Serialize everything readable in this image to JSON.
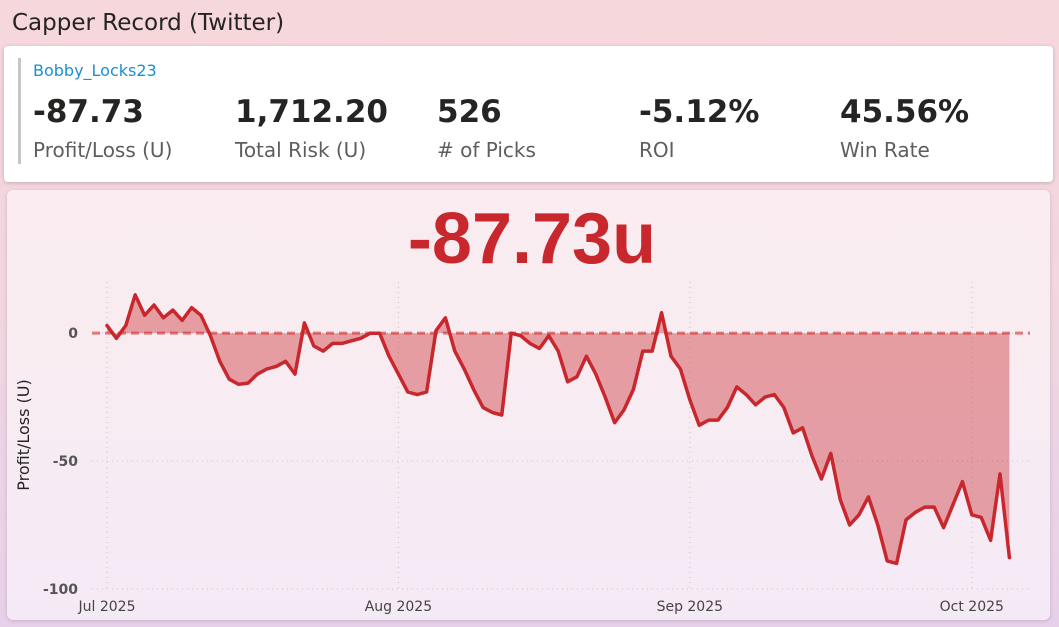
{
  "header": {
    "title": "Capper Record (Twitter)"
  },
  "card": {
    "name": "Bobby_Locks23",
    "kpis": [
      {
        "value": "-87.73",
        "label": "Profit/Loss (U)"
      },
      {
        "value": "1,712.20",
        "label": "Total Risk (U)"
      },
      {
        "value": "526",
        "label": "# of Picks"
      },
      {
        "value": "-5.12%",
        "label": "ROI"
      },
      {
        "value": "45.56%",
        "label": "Win Rate"
      }
    ]
  },
  "chart_data": {
    "type": "line",
    "annotation": "-87.73u",
    "y_label": "Profit/Loss (U)",
    "categories": [
      "Jul 2025",
      null,
      null,
      null,
      null,
      null,
      null,
      null,
      null,
      null,
      null,
      null,
      null,
      null,
      null,
      null,
      null,
      null,
      null,
      null,
      null,
      null,
      null,
      null,
      null,
      null,
      null,
      null,
      null,
      null,
      null,
      "Aug 2025",
      null,
      null,
      null,
      null,
      null,
      null,
      null,
      null,
      null,
      null,
      null,
      null,
      null,
      null,
      null,
      null,
      null,
      null,
      null,
      null,
      null,
      null,
      null,
      null,
      null,
      null,
      null,
      null,
      null,
      null,
      "Sep 2025",
      null,
      null,
      null,
      null,
      null,
      null,
      null,
      null,
      null,
      null,
      null,
      null,
      null,
      null,
      null,
      null,
      null,
      null,
      null,
      null,
      null,
      null,
      null,
      null,
      null,
      null,
      null,
      null,
      null,
      "Oct 2025",
      null,
      null,
      null,
      null
    ],
    "series": [
      {
        "name": "Profit/Loss (U)",
        "color": "#c8282d",
        "values": [
          3,
          -2,
          3,
          15,
          7,
          11,
          6,
          9,
          5,
          10,
          7,
          -1,
          -11,
          -18,
          -20,
          -19.5,
          -16,
          -14,
          -13,
          -11,
          -16,
          4,
          -5,
          -7,
          -4,
          -4,
          -3,
          -2,
          0,
          0,
          -9,
          -16,
          -23,
          -24,
          -23,
          1,
          6,
          -7,
          -14,
          -22,
          -29,
          -31,
          -32,
          0,
          -1,
          -4,
          -6,
          -1,
          -7,
          -19,
          -17,
          -9,
          -16,
          -25,
          -35,
          -30,
          -22,
          -7,
          -7,
          8,
          -9,
          -14,
          -26,
          -36,
          -34,
          -34,
          -29,
          -21,
          -24,
          -28,
          -25,
          -24,
          -29,
          -39,
          -37,
          -48,
          -57,
          -47,
          -65,
          -75,
          -71,
          -64,
          -75,
          -89,
          -90,
          -73,
          -70,
          -68,
          -68,
          -76,
          -67,
          -58,
          -71,
          -72,
          -81,
          -55,
          -87.73
        ]
      }
    ],
    "ylim": [
      -100,
      20
    ],
    "yticks": [
      -100,
      -50,
      0
    ],
    "grid": true,
    "zero_line": true
  }
}
